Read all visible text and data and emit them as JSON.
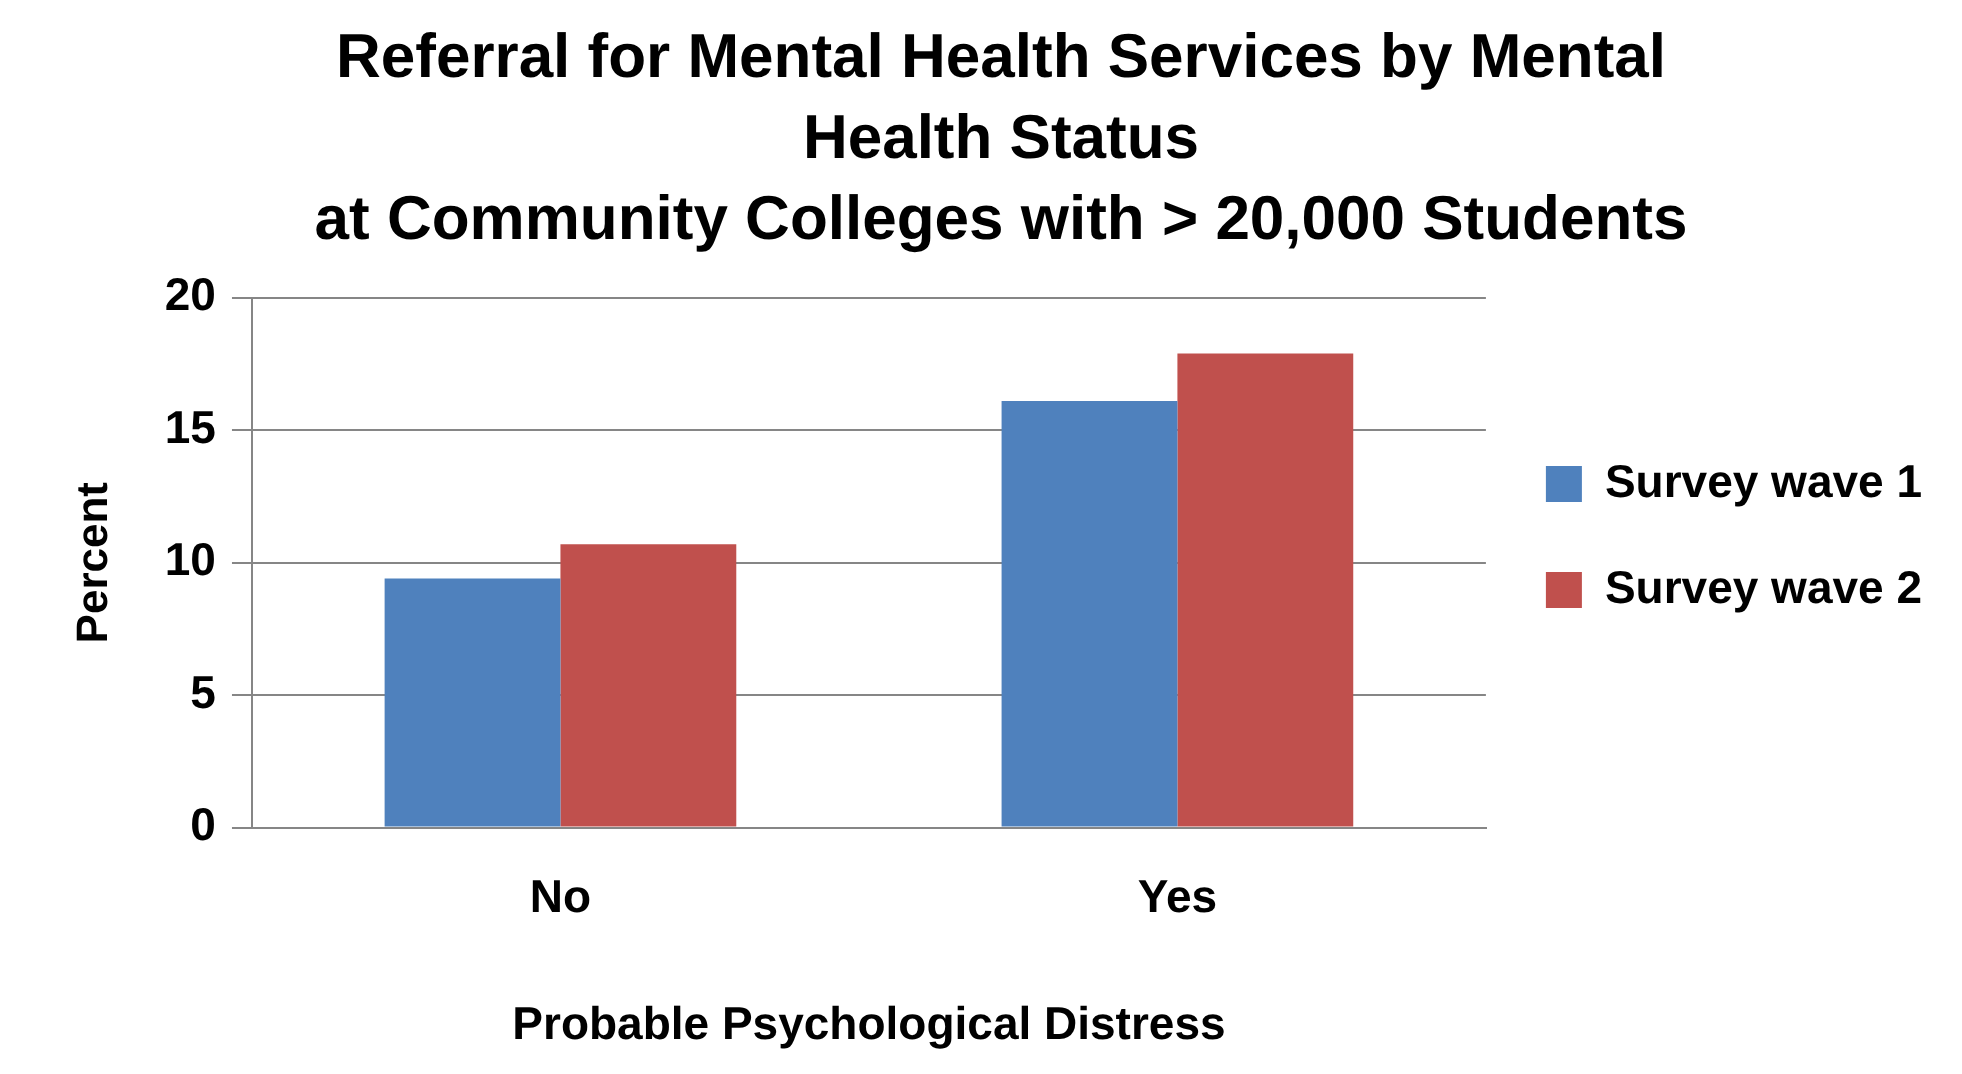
{
  "chart_data": {
    "type": "bar",
    "title": "Referral for Mental Health Services by Mental Health Status\nat Community Colleges with > 20,000 Students",
    "xlabel": "Probable Psychological Distress",
    "ylabel": "Percent",
    "categories": [
      "No",
      "Yes"
    ],
    "series": [
      {
        "name": "Survey wave 1",
        "color": "#4f81bd",
        "values": [
          9.4,
          16.1
        ]
      },
      {
        "name": "Survey wave 2",
        "color": "#c0504d",
        "values": [
          10.7,
          17.9
        ]
      }
    ],
    "ylim": [
      0,
      20
    ],
    "yticks": [
      0,
      5,
      10,
      15,
      20
    ],
    "grid": "y",
    "legend": "right"
  }
}
